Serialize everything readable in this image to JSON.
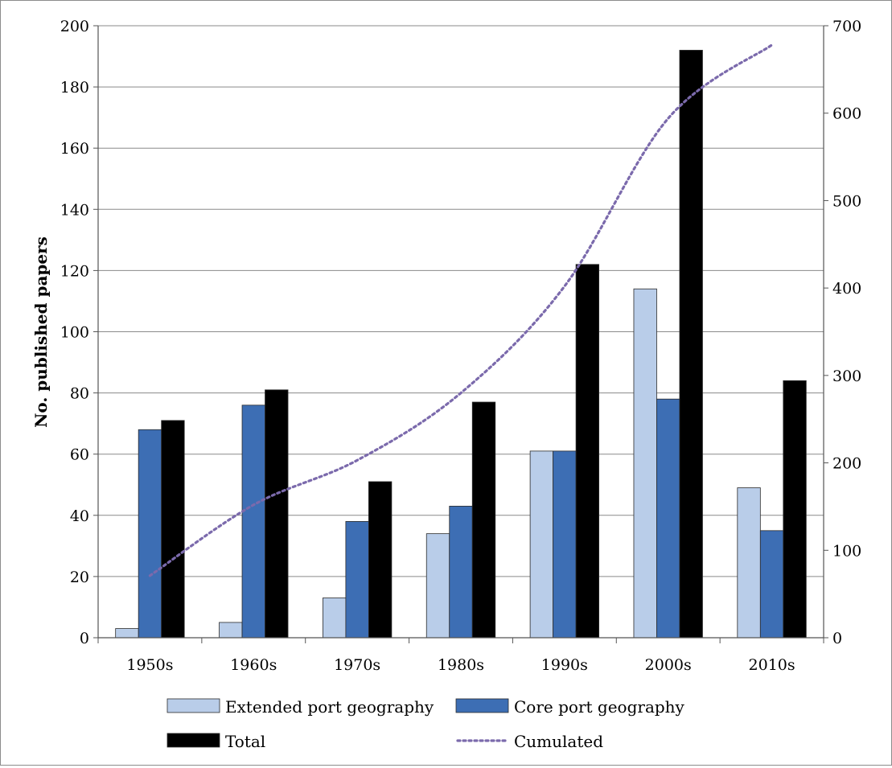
{
  "chart_data": {
    "type": "bar",
    "title": "",
    "xlabel": "",
    "ylabel": "No. published papers",
    "y2label": "",
    "categories": [
      "1950s",
      "1960s",
      "1970s",
      "1980s",
      "1990s",
      "2000s",
      "2010s"
    ],
    "ylim": [
      0,
      200
    ],
    "yticks": [
      0,
      20,
      40,
      60,
      80,
      100,
      120,
      140,
      160,
      180,
      200
    ],
    "y2lim": [
      0,
      700
    ],
    "y2ticks": [
      0,
      100,
      200,
      300,
      400,
      500,
      600,
      700
    ],
    "grid": true,
    "legend_position": "bottom",
    "series": [
      {
        "name": "Extended port geography",
        "type": "bar",
        "axis": "left",
        "color": "#b9cde9",
        "values": [
          3,
          5,
          13,
          34,
          61,
          114,
          49
        ]
      },
      {
        "name": "Core port geography",
        "type": "bar",
        "axis": "left",
        "color": "#3d6eb4",
        "values": [
          68,
          76,
          38,
          43,
          61,
          78,
          35
        ]
      },
      {
        "name": "Total",
        "type": "bar",
        "axis": "left",
        "color": "#000000",
        "values": [
          71,
          81,
          51,
          77,
          122,
          192,
          84
        ]
      },
      {
        "name": "Cumulated",
        "type": "line",
        "style": "dotted",
        "axis": "right",
        "color": "#7b6aac",
        "values": [
          71,
          152,
          203,
          280,
          402,
          594,
          678
        ]
      }
    ]
  }
}
